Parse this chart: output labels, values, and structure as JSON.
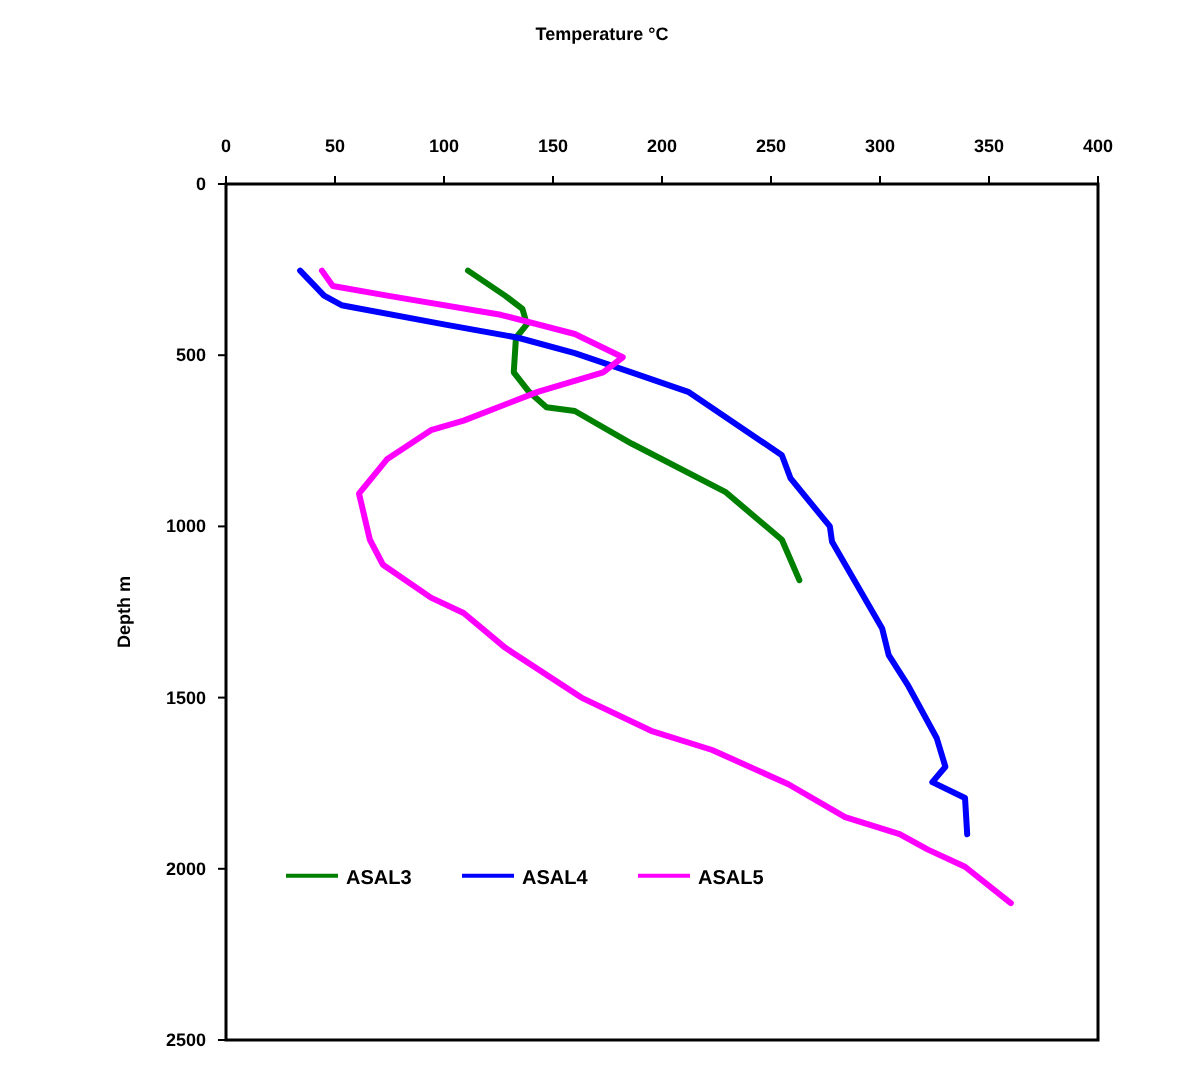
{
  "chart_data": {
    "type": "line",
    "title": "Temperature °C",
    "ylabel": "Depth m",
    "xlim": [
      0,
      400
    ],
    "xticks": [
      0,
      50,
      100,
      150,
      200,
      250,
      300,
      350,
      400
    ],
    "ylim": [
      2500,
      0
    ],
    "yticks": [
      0,
      500,
      1000,
      1500,
      2000,
      2500
    ],
    "grid": false,
    "legend": "bottom left",
    "line_style": "solid",
    "marker": "none",
    "series": [
      {
        "name": "ASAL3",
        "color": "#008000",
        "x": [
          111,
          128,
          136,
          138,
          133,
          132,
          139,
          147,
          160,
          186,
          229,
          255,
          263
        ],
        "values": [
          253,
          326,
          365,
          410,
          449,
          550,
          607,
          652,
          663,
          758,
          899,
          1039,
          1157
        ]
      },
      {
        "name": "ASAL4",
        "color": "#0000ff",
        "x": [
          34,
          45,
          53,
          100,
          134,
          160,
          186,
          212,
          255,
          259,
          277,
          278,
          301,
          304,
          313,
          326,
          330,
          324,
          339,
          340
        ],
        "values": [
          253,
          326,
          354,
          410,
          449,
          494,
          550,
          607,
          792,
          860,
          1000,
          1045,
          1298,
          1376,
          1466,
          1618,
          1702,
          1747,
          1793,
          1899
        ]
      },
      {
        "name": "ASAL5",
        "color": "#ff00ff",
        "x": [
          44,
          49,
          74,
          126,
          160,
          182,
          173,
          143,
          109,
          94,
          74,
          61,
          66,
          72,
          94,
          109,
          128,
          163,
          195,
          223,
          258,
          284,
          309,
          322,
          339,
          360
        ],
        "values": [
          253,
          298,
          326,
          382,
          438,
          506,
          550,
          607,
          691,
          719,
          803,
          904,
          1039,
          1112,
          1208,
          1253,
          1354,
          1500,
          1597,
          1653,
          1753,
          1849,
          1899,
          1944,
          1994,
          2100
        ]
      }
    ]
  }
}
